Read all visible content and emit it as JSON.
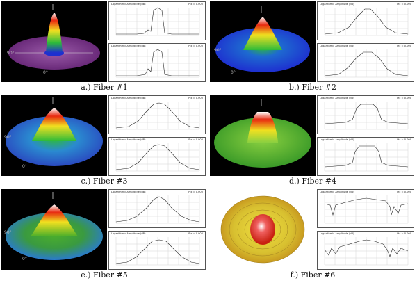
{
  "figure": {
    "panels": [
      {
        "id": "a",
        "caption": "a.) Fiber #1",
        "plot_title": "Logarithmic Amplitude (dB)",
        "plot_info": "Pix = 0.000",
        "style": "narrow"
      },
      {
        "id": "b",
        "caption": "b.) Fiber #2",
        "plot_title": "Logarithmic Amplitude (dB)",
        "plot_info": "Pix = 0.000",
        "style": "wide"
      },
      {
        "id": "c",
        "caption": "c.) Fiber #3",
        "plot_title": "Logarithmic Amplitude (dB)",
        "plot_info": "Pix = 0.000",
        "style": "wide"
      },
      {
        "id": "d",
        "caption": "d.) Fiber #4",
        "plot_title": "Logarithmic Amplitude (dB)",
        "plot_info": "Pix = 0.000",
        "style": "flat"
      },
      {
        "id": "e",
        "caption": "e.) Fiber #5",
        "plot_title": "Logarithmic Amplitude (dB)",
        "plot_info": "Pix = 0.000",
        "style": "wide"
      },
      {
        "id": "f",
        "caption": "f.) Fiber #6",
        "plot_title": "Logarithmic Amplitude (dB)",
        "plot_info": "Pix = 0.000",
        "style": "multi"
      }
    ],
    "surface_colors": {
      "base_purple": "#7a3a8a",
      "base_blue": "#1e2fd0",
      "base_green": "#4caf2a",
      "peak_red": "#e82a10",
      "peak_white": "#ffffff",
      "fiber6_yellow": "#e8d23a"
    }
  }
}
